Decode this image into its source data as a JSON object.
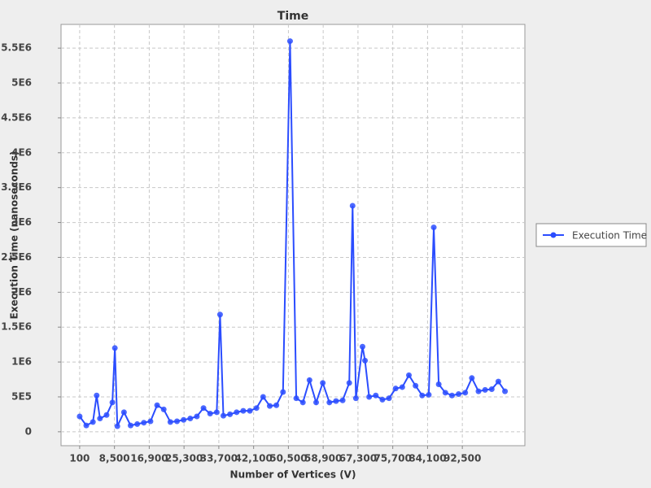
{
  "chart_data": {
    "type": "line",
    "title": "Time",
    "x_label": "Number of Vertices (V)",
    "y_label": "Execution Time (nanoseconds)",
    "x": [
      100,
      1700,
      3300,
      4200,
      5000,
      6600,
      8000,
      8600,
      9200,
      10800,
      12400,
      14000,
      15600,
      17200,
      18800,
      20400,
      22000,
      23600,
      25200,
      26800,
      28400,
      30000,
      31600,
      33200,
      34000,
      34800,
      36400,
      38000,
      39600,
      41200,
      42800,
      44400,
      46000,
      47600,
      49200,
      50900,
      52400,
      54000,
      55600,
      57200,
      58800,
      60400,
      62000,
      63600,
      65200,
      66000,
      66800,
      68400,
      69000,
      70000,
      71600,
      73200,
      74800,
      76400,
      78000,
      79600,
      81200,
      82800,
      84400,
      85600,
      86800,
      88400,
      90000,
      91600,
      93200,
      94800,
      96400,
      98000,
      99600,
      101200,
      102800
    ],
    "series": [
      {
        "name": "Execution Time",
        "color": "#2b4dff",
        "values": [
          220000,
          90000,
          140000,
          520000,
          190000,
          240000,
          420000,
          1200000,
          80000,
          280000,
          90000,
          110000,
          130000,
          150000,
          380000,
          320000,
          140000,
          150000,
          170000,
          190000,
          220000,
          340000,
          260000,
          280000,
          1680000,
          230000,
          250000,
          280000,
          300000,
          300000,
          340000,
          500000,
          370000,
          380000,
          570000,
          5600000,
          480000,
          420000,
          740000,
          420000,
          700000,
          420000,
          440000,
          450000,
          700000,
          3240000,
          480000,
          1220000,
          1020000,
          500000,
          520000,
          460000,
          480000,
          620000,
          640000,
          810000,
          660000,
          520000,
          530000,
          2930000,
          680000,
          560000,
          520000,
          540000,
          560000,
          770000,
          580000,
          600000,
          610000,
          720000,
          580000
        ]
      }
    ],
    "xlim": [
      -4400,
      107600
    ],
    "ylim": [
      -200000,
      5840000
    ],
    "xticks": [
      100,
      {
        "value": 8500,
        "label": "8,500"
      },
      {
        "value": 16900,
        "label": "16,900"
      },
      {
        "value": 25300,
        "label": "25,300"
      },
      {
        "value": 33700,
        "label": "33,700"
      },
      {
        "value": 42100,
        "label": "42,100"
      },
      {
        "value": 50500,
        "label": "50,500"
      },
      {
        "value": 58900,
        "label": "58,900"
      },
      {
        "value": 67300,
        "label": "67,300"
      },
      {
        "value": 75700,
        "label": "75,700"
      },
      {
        "value": 84100,
        "label": "84,100"
      },
      {
        "value": 92500,
        "label": "92,500"
      }
    ],
    "yticks": [
      0,
      {
        "value": 500000,
        "label": "5E5"
      },
      {
        "value": 1000000,
        "label": "1E6"
      },
      {
        "value": 1500000,
        "label": "1.5E6"
      },
      {
        "value": 2000000,
        "label": "2E6"
      },
      {
        "value": 2500000,
        "label": "2.5E6"
      },
      {
        "value": 3000000,
        "label": "3E6"
      },
      {
        "value": 3500000,
        "label": "3.5E6"
      },
      {
        "value": 4000000,
        "label": "4E6"
      },
      {
        "value": 4500000,
        "label": "4.5E6"
      },
      {
        "value": 5000000,
        "label": "5E6"
      },
      {
        "value": 5500000,
        "label": "5.5E6"
      }
    ],
    "grid": true,
    "legend": "right"
  }
}
